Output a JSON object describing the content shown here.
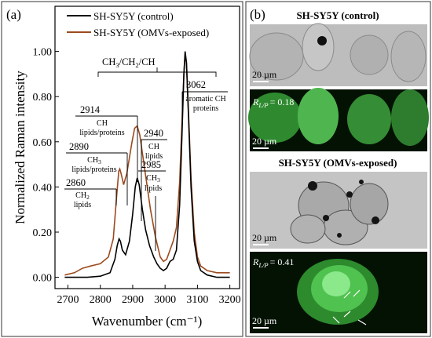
{
  "panel_a": {
    "label": "(a)",
    "legend": {
      "control": "SH-SY5Y (control)",
      "exposed": "SH-SY5Y (OMVs-exposed)"
    },
    "annotations": {
      "group": {
        "a": "CH",
        "sa": "3",
        "b": "/CH",
        "sb": "2",
        "c": "/CH"
      },
      "p2914": {
        "wn": "2914",
        "l1": "CH",
        "l2": "lipids/proteins"
      },
      "p2890": {
        "wn": "2890",
        "l1a": "CH",
        "l1s": "3",
        "l2": "lipids/proteins"
      },
      "p2860": {
        "wn": "2860",
        "l1a": "CH",
        "l1s": "2",
        "l2": "lipids"
      },
      "p2940": {
        "wn": "2940",
        "l1": "CH",
        "l2": "lipids"
      },
      "p2985": {
        "wn": "2985",
        "l1a": "CH",
        "l1s": "3",
        "l2": "lipids"
      },
      "p3062": {
        "wn": "3062",
        "l1": "aromatic CH",
        "l2": "proteins"
      }
    }
  },
  "chart_data": {
    "type": "line",
    "title": "",
    "xlabel": "Wavenumber (cm⁻¹)",
    "ylabel": "Normalized Raman intensity",
    "xlim": [
      2660,
      3230
    ],
    "ylim": [
      -0.05,
      1.2
    ],
    "xticks": [
      2700,
      2800,
      2900,
      3000,
      3100,
      3200
    ],
    "yticks": [
      0.0,
      0.2,
      0.4,
      0.6,
      0.8,
      1.0
    ],
    "ytick_labels": [
      "0.00",
      "0.20",
      "0.40",
      "0.60",
      "0.80",
      "1.00"
    ],
    "colors": {
      "control": "#000000",
      "exposed": "#9c4a1e"
    },
    "series": [
      {
        "name": "SH-SY5Y (control)",
        "x": [
          2690,
          2720,
          2760,
          2800,
          2830,
          2845,
          2852,
          2858,
          2862,
          2868,
          2878,
          2890,
          2900,
          2908,
          2914,
          2920,
          2930,
          2940,
          2952,
          2965,
          2975,
          2985,
          2995,
          3005,
          3015,
          3025,
          3035,
          3045,
          3052,
          3058,
          3062,
          3066,
          3072,
          3080,
          3090,
          3100,
          3110,
          3130,
          3160,
          3200
        ],
        "y": [
          0.0,
          0.0,
          0.0,
          0.005,
          0.02,
          0.08,
          0.14,
          0.17,
          0.16,
          0.12,
          0.1,
          0.16,
          0.28,
          0.4,
          0.44,
          0.41,
          0.3,
          0.21,
          0.14,
          0.09,
          0.06,
          0.04,
          0.03,
          0.04,
          0.07,
          0.08,
          0.12,
          0.32,
          0.62,
          0.9,
          1.0,
          0.95,
          0.72,
          0.4,
          0.16,
          0.07,
          0.03,
          0.01,
          0.0,
          0.0
        ]
      },
      {
        "name": "SH-SY5Y (OMVs-exposed)",
        "x": [
          2690,
          2720,
          2745,
          2770,
          2800,
          2825,
          2840,
          2850,
          2857,
          2860,
          2864,
          2872,
          2882,
          2890,
          2898,
          2906,
          2914,
          2922,
          2930,
          2940,
          2955,
          2970,
          2985,
          2995,
          3005,
          3015,
          3025,
          3035,
          3045,
          3052,
          3058,
          3062,
          3066,
          3072,
          3080,
          3090,
          3100,
          3110,
          3130,
          3160,
          3200
        ],
        "y": [
          0.01,
          0.02,
          0.04,
          0.05,
          0.06,
          0.09,
          0.17,
          0.35,
          0.47,
          0.48,
          0.46,
          0.41,
          0.46,
          0.53,
          0.6,
          0.66,
          0.67,
          0.63,
          0.55,
          0.45,
          0.3,
          0.18,
          0.09,
          0.07,
          0.08,
          0.12,
          0.16,
          0.22,
          0.42,
          0.68,
          0.9,
          0.99,
          0.95,
          0.74,
          0.44,
          0.2,
          0.09,
          0.05,
          0.03,
          0.02,
          0.02
        ]
      }
    ]
  },
  "panel_b": {
    "label": "(b)",
    "control_title": "SH-SY5Y (control)",
    "exposed_title": "SH-SY5Y (OMVs-exposed)",
    "scale_bar": "20 µm",
    "ratio_symbol": "R",
    "ratio_sub": "L/P",
    "ratio_control": "= 0.18",
    "ratio_exposed": "= 0.41"
  }
}
